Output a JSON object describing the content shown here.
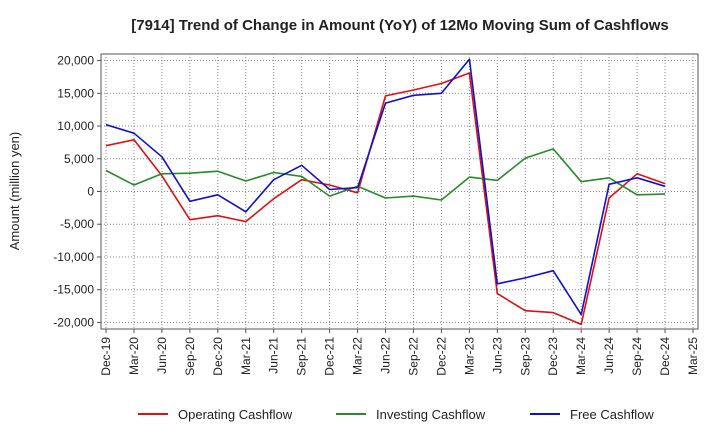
{
  "chart_data": {
    "type": "line",
    "title": "[7914]  Trend of Change in Amount (YoY) of 12Mo Moving Sum of Cashflows",
    "xlabel": "",
    "ylabel": "Amount (million yen)",
    "ylim": [
      -21000,
      21000
    ],
    "yticks": [
      20000,
      15000,
      10000,
      5000,
      0,
      -5000,
      -10000,
      -15000,
      -20000
    ],
    "ytick_labels": [
      "20,000",
      "15,000",
      "10,000",
      "5,000",
      "0",
      "-5,000",
      "-10,000",
      "-15,000",
      "-20,000"
    ],
    "categories": [
      "Dec-19",
      "Mar-20",
      "Jun-20",
      "Sep-20",
      "Dec-20",
      "Mar-21",
      "Jun-21",
      "Sep-21",
      "Dec-21",
      "Mar-22",
      "Jun-22",
      "Sep-22",
      "Dec-22",
      "Mar-23",
      "Jun-23",
      "Sep-23",
      "Dec-23",
      "Mar-24",
      "Jun-24",
      "Sep-24",
      "Dec-24",
      "Mar-25"
    ],
    "grid": true,
    "legend_position": "bottom",
    "series": [
      {
        "name": "Operating Cashflow",
        "color": "#dd1111",
        "values": [
          7000,
          7900,
          2400,
          -4300,
          -3700,
          -4600,
          -1100,
          1800,
          1000,
          -200,
          14600,
          15500,
          16500,
          18100,
          -15600,
          -18200,
          -18500,
          -20300,
          -1000,
          2700,
          1200,
          null
        ]
      },
      {
        "name": "Investing Cashflow",
        "color": "#2a8a2a",
        "values": [
          3200,
          1000,
          2700,
          2800,
          3100,
          1600,
          2900,
          2300,
          -700,
          800,
          -1000,
          -700,
          -1300,
          2200,
          1700,
          5100,
          6500,
          1500,
          2100,
          -500,
          -400,
          null
        ]
      },
      {
        "name": "Free Cashflow",
        "color": "#1111cc",
        "values": [
          10200,
          8900,
          5300,
          -1500,
          -500,
          -3100,
          1800,
          4000,
          300,
          600,
          13500,
          14700,
          15000,
          20200,
          -14100,
          -13200,
          -12100,
          -18800,
          1100,
          2100,
          800,
          null
        ]
      }
    ]
  }
}
